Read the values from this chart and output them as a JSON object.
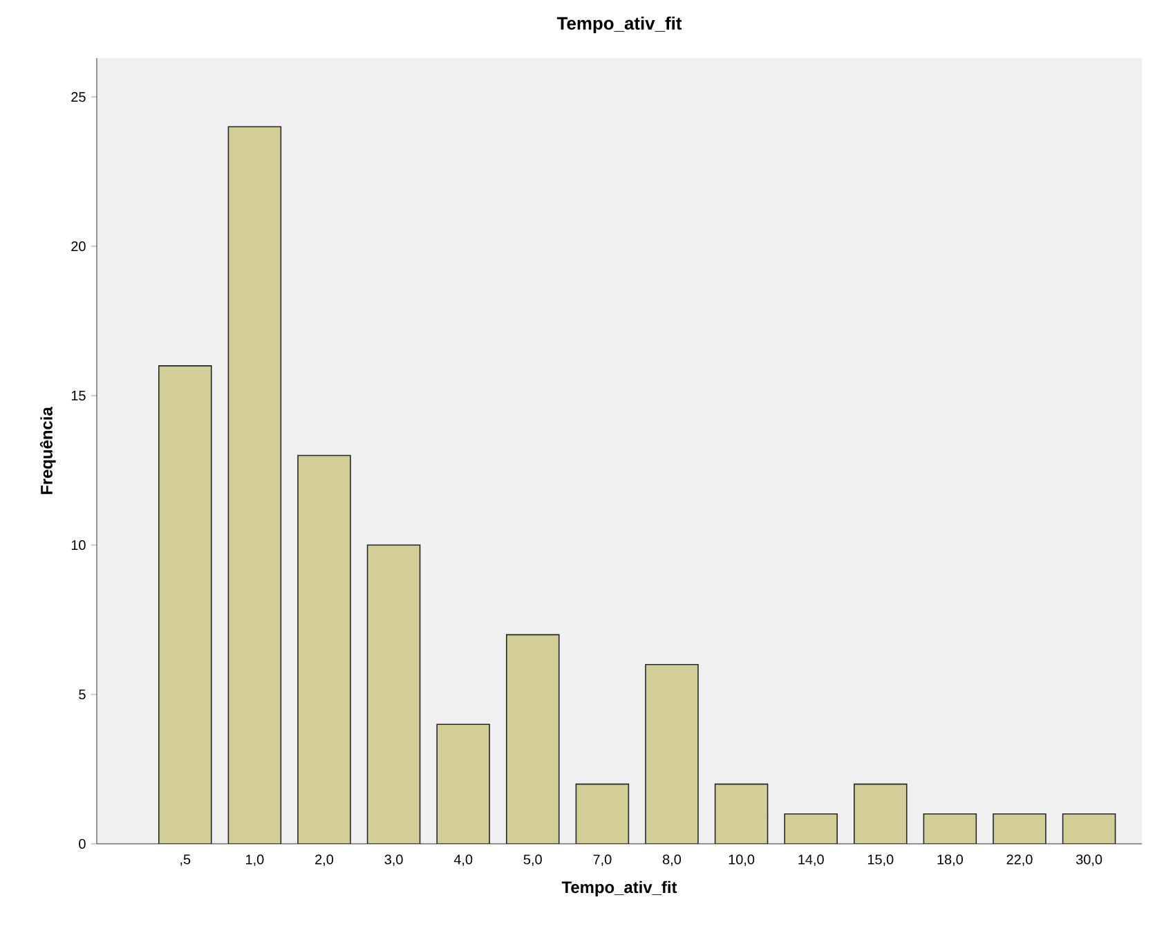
{
  "chart_data": {
    "type": "bar",
    "title": "Tempo_ativ_fit",
    "xlabel": "Tempo_ativ_fit",
    "ylabel": "Frequência",
    "categories": [
      ",5",
      "1,0",
      "2,0",
      "3,0",
      "4,0",
      "5,0",
      "7,0",
      "8,0",
      "10,0",
      "14,0",
      "15,0",
      "18,0",
      "22,0",
      "30,0"
    ],
    "values": [
      16,
      24,
      13,
      10,
      4,
      7,
      2,
      6,
      2,
      1,
      2,
      1,
      1,
      1
    ],
    "color": "#d3ce98",
    "ylim": [
      0,
      26.3
    ],
    "yticks": [
      0,
      5,
      10,
      15,
      20,
      25
    ]
  }
}
